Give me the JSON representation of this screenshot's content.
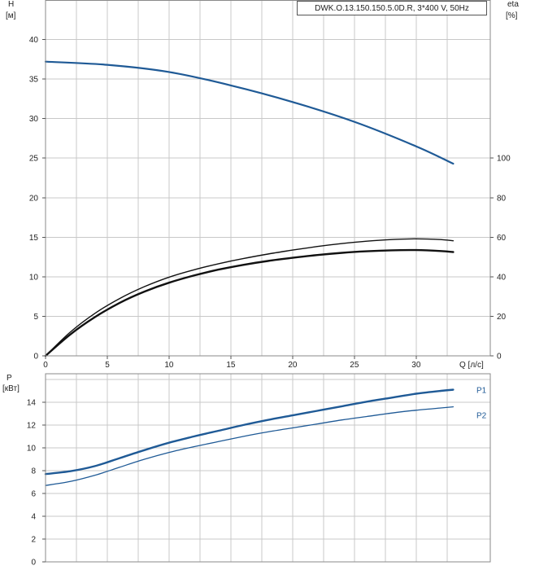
{
  "chart_data": [
    {
      "type": "line",
      "title": "DWK.O.13.150.150.5.0D.R, 3*400 V, 50Hz",
      "y_left_label": "H",
      "y_left_unit": "[м]",
      "y_right_label": "eta",
      "y_right_unit": "[%]",
      "x_label": "Q [л/с]",
      "xlim": [
        0,
        36
      ],
      "ylim_left": [
        0,
        45
      ],
      "ylim_right": [
        0,
        180
      ],
      "grid": true,
      "x_ticks": [
        "0",
        "5",
        "10",
        "15",
        "20",
        "25",
        "30"
      ],
      "y_left_ticks": [
        "0",
        "5",
        "10",
        "15",
        "20",
        "25",
        "30",
        "35",
        "40"
      ],
      "y_right_ticks": [
        "0",
        "20",
        "40",
        "60",
        "80",
        "100"
      ],
      "series": [
        {
          "axis": "left",
          "color": "#1f5a96",
          "width": 2.2,
          "x": [
            0,
            5,
            10,
            15,
            20,
            25,
            30,
            33
          ],
          "y": [
            37.2,
            36.8,
            35.9,
            34.2,
            32.1,
            29.6,
            26.5,
            24.3
          ]
        },
        {
          "axis": "right",
          "color": "#111111",
          "width": 1.4,
          "x": [
            0,
            2,
            4,
            6,
            8,
            10,
            12,
            14,
            16,
            18,
            20,
            22,
            24,
            26,
            28,
            30,
            32,
            33
          ],
          "y": [
            0,
            12,
            21.5,
            29,
            35,
            39.8,
            43.5,
            46.6,
            49.2,
            51.5,
            53.5,
            55.3,
            56.8,
            58,
            58.8,
            59.2,
            58.8,
            58.2
          ]
        },
        {
          "axis": "right",
          "color": "#111111",
          "width": 2.4,
          "x": [
            0,
            2,
            4,
            6,
            8,
            10,
            12,
            14,
            16,
            18,
            20,
            22,
            24,
            26,
            28,
            30,
            32,
            33
          ],
          "y": [
            0,
            10.8,
            19.6,
            26.8,
            32.5,
            37,
            40.6,
            43.6,
            46,
            48,
            49.6,
            51,
            52.1,
            52.9,
            53.4,
            53.5,
            53,
            52.5
          ]
        }
      ]
    },
    {
      "type": "line",
      "y_label": "P",
      "y_unit": "[кВт]",
      "xlim": [
        0,
        36
      ],
      "ylim": [
        0,
        16.5
      ],
      "grid": true,
      "y_ticks": [
        "0",
        "2",
        "4",
        "6",
        "8",
        "10",
        "12",
        "14"
      ],
      "series": [
        {
          "name": "P1",
          "color": "#1f5a96",
          "width": 2.4,
          "x": [
            0,
            2,
            4,
            6,
            8,
            10,
            12,
            14,
            16,
            18,
            20,
            22,
            24,
            26,
            28,
            30,
            32,
            33
          ],
          "y": [
            7.7,
            7.95,
            8.4,
            9.1,
            9.8,
            10.45,
            11.0,
            11.5,
            12.0,
            12.45,
            12.85,
            13.25,
            13.65,
            14.05,
            14.4,
            14.75,
            15.0,
            15.1
          ]
        },
        {
          "name": "P2",
          "color": "#1f5a96",
          "width": 1.3,
          "x": [
            0,
            2,
            4,
            6,
            8,
            10,
            12,
            14,
            16,
            18,
            20,
            22,
            24,
            26,
            28,
            30,
            32,
            33
          ],
          "y": [
            6.7,
            7.05,
            7.6,
            8.3,
            9.0,
            9.6,
            10.1,
            10.55,
            11.0,
            11.4,
            11.75,
            12.1,
            12.45,
            12.75,
            13.05,
            13.3,
            13.5,
            13.6
          ]
        }
      ]
    }
  ]
}
